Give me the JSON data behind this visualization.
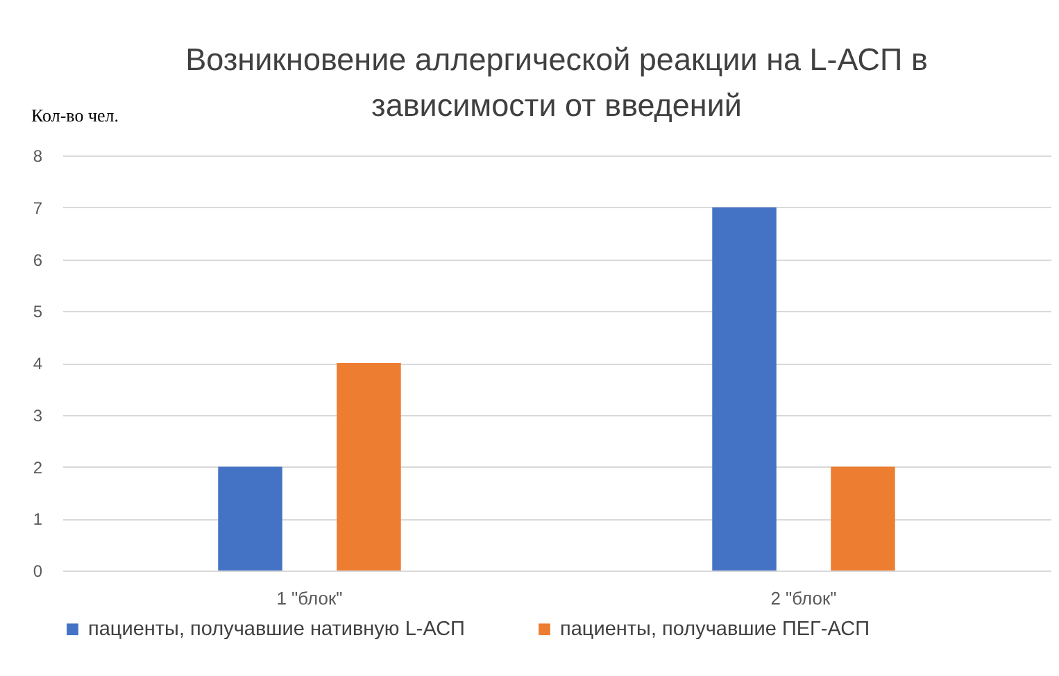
{
  "chart_data": {
    "type": "bar",
    "title": "Возникновение аллергической реакции на L-АСП в\nзависимости от введений",
    "ylabel": "Кол-во чел.",
    "categories": [
      "1 \"блок\"",
      "2 \"блок\""
    ],
    "series": [
      {
        "name": "пациенты, получавшие нативную L-АСП",
        "color": "#4472c4",
        "values": [
          2,
          7
        ]
      },
      {
        "name": "пациенты, получавшие ПЕГ-АСП",
        "color": "#ed7d31",
        "values": [
          4,
          2
        ]
      }
    ],
    "ylim": [
      0,
      8
    ],
    "yticks": [
      0,
      1,
      2,
      3,
      4,
      5,
      6,
      7,
      8
    ],
    "grid": "y",
    "legend": "bottom"
  }
}
